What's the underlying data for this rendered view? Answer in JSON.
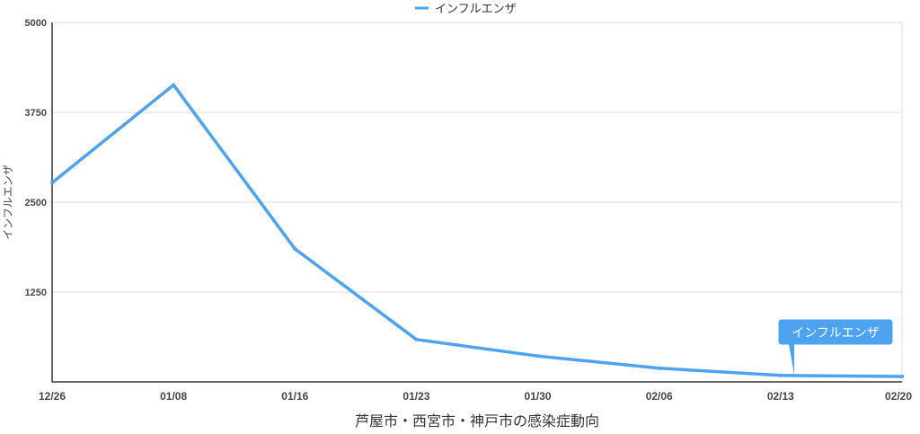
{
  "chart_data": {
    "type": "line",
    "title": "",
    "xlabel": "芦屋市・西宮市・神戸市の感染症動向",
    "ylabel": "インフルエンザ",
    "ylim": [
      0,
      5000
    ],
    "yticks": [
      "5000",
      "3750",
      "2500",
      "1250"
    ],
    "categories": [
      "12/26",
      "01/08",
      "01/16",
      "01/23",
      "01/30",
      "02/06",
      "02/13",
      "02/20"
    ],
    "series": [
      {
        "name": "インフルエンザ",
        "color": "#4da3ef",
        "values": [
          2770,
          4130,
          1850,
          590,
          360,
          190,
          90,
          75
        ]
      }
    ],
    "grid": true,
    "legend": "top-center",
    "annotation": {
      "text": "インフルエンザ",
      "category": "02/13"
    }
  }
}
